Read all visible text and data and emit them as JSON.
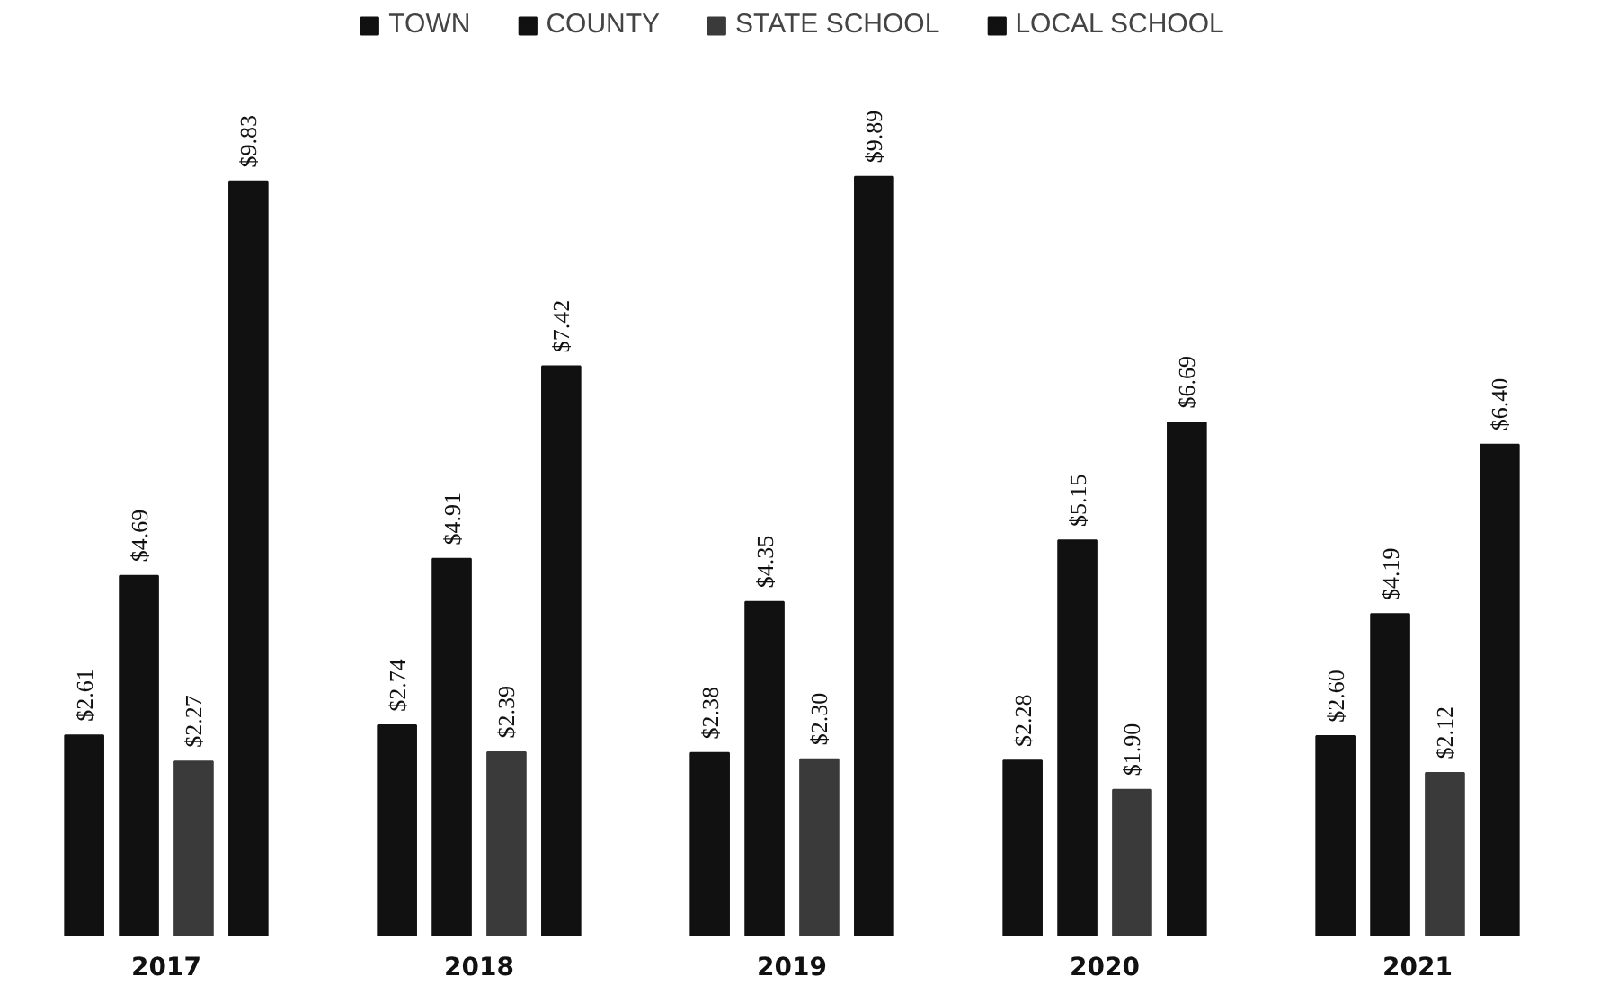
{
  "chart_data": {
    "type": "bar",
    "categories": [
      "2017",
      "2018",
      "2019",
      "2020",
      "2021"
    ],
    "series": [
      {
        "name": "TOWN",
        "color": "#111111",
        "values": [
          2.61,
          2.74,
          2.38,
          2.28,
          2.6
        ],
        "value_labels": [
          "$2.61",
          "$2.74",
          "$2.38",
          "$2.28",
          "$2.60"
        ]
      },
      {
        "name": "COUNTY",
        "color": "#111111",
        "values": [
          4.69,
          4.91,
          4.35,
          5.15,
          4.19
        ],
        "value_labels": [
          "$4.69",
          "$4.91",
          "$4.35",
          "$5.15",
          "$4.19"
        ]
      },
      {
        "name": "STATE SCHOOL",
        "color": "#3a3a3a",
        "values": [
          2.27,
          2.39,
          2.3,
          1.9,
          2.12
        ],
        "value_labels": [
          "$2.27",
          "$2.39",
          "$2.30",
          "$1.90",
          "$2.12"
        ]
      },
      {
        "name": "LOCAL SCHOOL",
        "color": "#111111",
        "values": [
          9.83,
          7.42,
          9.89,
          6.69,
          6.4
        ],
        "value_labels": [
          "$9.83",
          "$7.42",
          "$9.89",
          "$6.69",
          "$6.40"
        ]
      }
    ],
    "legend": "top"
  }
}
